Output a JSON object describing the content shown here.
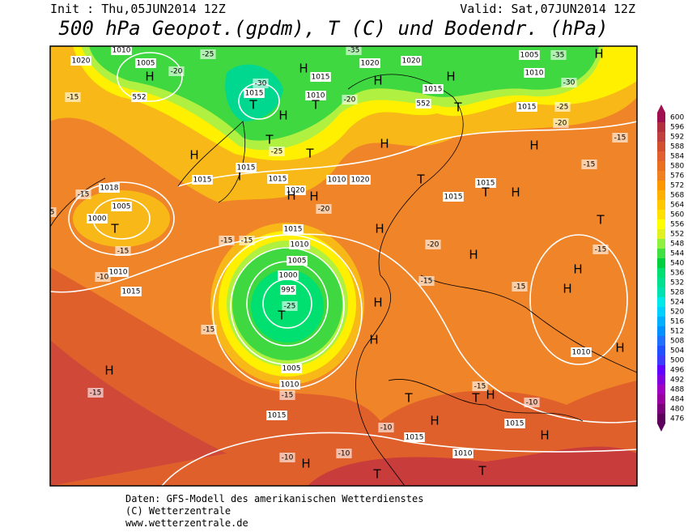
{
  "header": {
    "init": "Init : Thu,05JUN2014 12Z",
    "valid": "Valid: Sat,07JUN2014 12Z",
    "title": "500 hPa Geopot.(gpdm), T (C) und Bodendr. (hPa)"
  },
  "footer": [
    "Daten: GFS-Modell des amerikanischen Wetterdienstes",
    "(C) Wetterzentrale",
    "www.wetterzentrale.de"
  ],
  "colorbar": {
    "levels": [
      476,
      480,
      484,
      488,
      492,
      496,
      500,
      504,
      508,
      512,
      516,
      520,
      524,
      528,
      532,
      536,
      540,
      544,
      548,
      552,
      556,
      560,
      564,
      568,
      572,
      576,
      580,
      584,
      588,
      592,
      596,
      600
    ],
    "colors": [
      "#5c005c",
      "#7a007a",
      "#9900a0",
      "#a000c0",
      "#8000e0",
      "#6000ff",
      "#3c3cff",
      "#2050ff",
      "#2070ff",
      "#0090ff",
      "#00b0ff",
      "#00d0ff",
      "#00e8e8",
      "#00e0b0",
      "#00e090",
      "#00e070",
      "#00d040",
      "#40e040",
      "#90f040",
      "#e0f020",
      "#ffff00",
      "#ffe000",
      "#ffc800",
      "#ffb000",
      "#ff9800",
      "#f08020",
      "#e87020",
      "#e06030",
      "#d05030",
      "#c04040",
      "#b03040",
      "#a01050"
    ]
  },
  "map": {
    "labels": [
      "1020",
      "1010",
      "1005",
      "H",
      "-20",
      "-25",
      "552",
      "-15",
      "1015",
      "T",
      "H",
      "-30",
      "1015",
      "1010",
      "T",
      "H",
      "1020",
      "1020",
      "H",
      "1015",
      "H",
      "T",
      "552",
      "-20",
      "-35",
      "1005",
      "-35",
      "1010",
      "-30",
      "H",
      "1015",
      "-25",
      "-20",
      "H",
      "1015",
      "T",
      "T",
      "-25",
      "T",
      "1015",
      "1015",
      "1020",
      "H",
      "H",
      "-20",
      "1010",
      "1020",
      "H",
      "T",
      "1015",
      "1015",
      "T",
      "H",
      "H",
      "-15",
      "-15",
      "T",
      "-15",
      "H",
      "H",
      "-15",
      "1010",
      "H",
      "1018",
      "-15",
      "1005",
      "-15",
      "1000",
      "T",
      "-15",
      "1010",
      "-10",
      "1015",
      "1015",
      "-15",
      "-15",
      "1010",
      "1005",
      "1000",
      "995",
      "-25",
      "T",
      "-15",
      "H",
      "1005",
      "1010",
      "-15",
      "H",
      "-15",
      "1015",
      "H",
      "-20",
      "H",
      "-15",
      "H",
      "T",
      "H",
      "T",
      "-15",
      "H",
      "-10",
      "1015",
      "H",
      "1015",
      "-10",
      "-10",
      "-10",
      "H",
      "1010",
      "T",
      "T"
    ]
  }
}
